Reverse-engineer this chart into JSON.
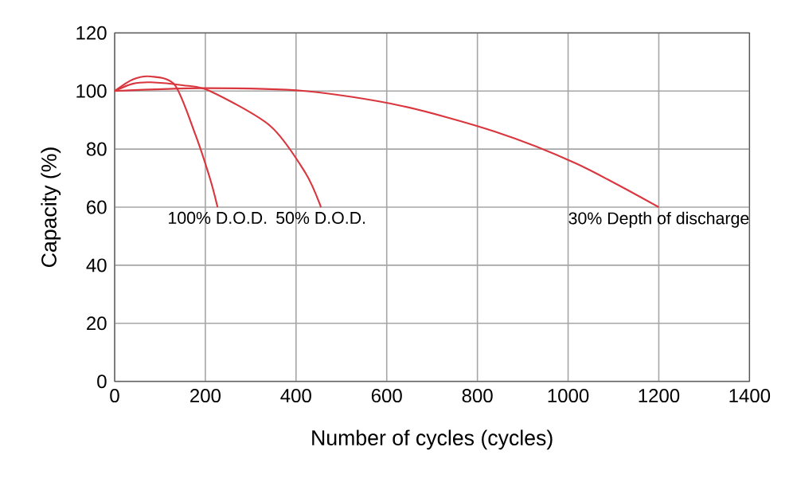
{
  "chart_data": {
    "type": "line",
    "xlabel": "Number of cycles (cycles)",
    "ylabel": "Capacity (%)",
    "xlim": [
      0,
      1400
    ],
    "ylim": [
      0,
      120
    ],
    "xticks": [
      0,
      200,
      400,
      600,
      800,
      1000,
      1200,
      1400
    ],
    "yticks": [
      0,
      20,
      40,
      60,
      80,
      100,
      120
    ],
    "grid": true,
    "marker": "none",
    "line_style": "solid",
    "series": [
      {
        "color": "#d9363e",
        "x": [
          0,
          40,
          80,
          133,
          178,
          210,
          227
        ],
        "values": [
          100,
          104,
          105,
          102,
          85,
          70,
          60
        ]
      },
      {
        "color": "#d9363e",
        "x": [
          0,
          40,
          80,
          150,
          210,
          343,
          420,
          455
        ],
        "values": [
          100,
          102.5,
          103,
          102,
          100,
          88,
          72,
          60
        ]
      },
      {
        "color": "#d9363e",
        "x": [
          0,
          200,
          420,
          629,
          839,
          1018,
          1200
        ],
        "values": [
          100,
          101,
          100,
          95,
          86,
          75,
          60
        ]
      }
    ],
    "annotations": [
      {
        "text": "100% D.O.D.",
        "x": 227,
        "y": 60
      },
      {
        "text": "50% D.O.D.",
        "x": 455,
        "y": 60
      },
      {
        "text": "30% Depth of discharge",
        "x": 1200,
        "y": 60
      }
    ]
  }
}
